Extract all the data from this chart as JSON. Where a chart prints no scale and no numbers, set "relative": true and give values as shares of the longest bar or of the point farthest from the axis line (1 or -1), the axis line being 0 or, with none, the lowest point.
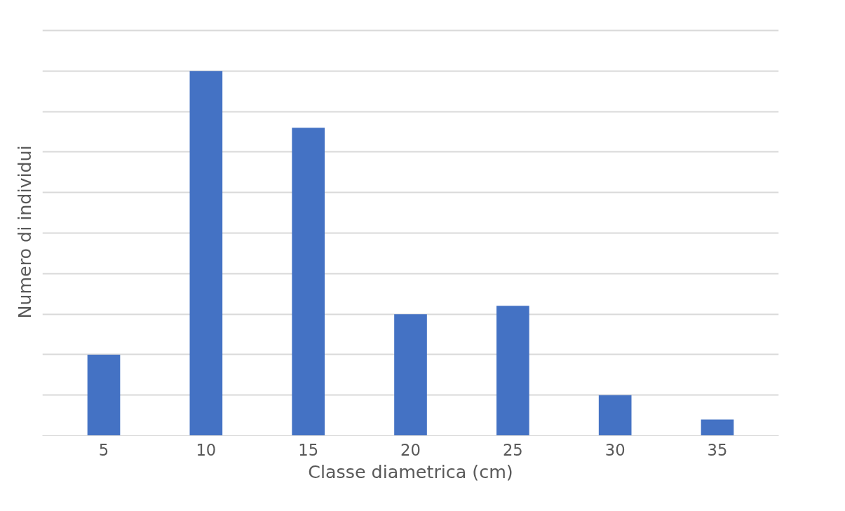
{
  "chart_data": {
    "type": "bar",
    "relative": true,
    "xlabel": "Classe diametrica (cm)",
    "ylabel": "Numero di individui",
    "categories": [
      "5",
      "10",
      "15",
      "20",
      "25",
      "30",
      "35"
    ],
    "values": [
      0.222,
      1,
      0.844,
      0.333,
      0.356,
      0.111,
      0.044
    ],
    "color": "#4472c4",
    "grid": "y"
  }
}
